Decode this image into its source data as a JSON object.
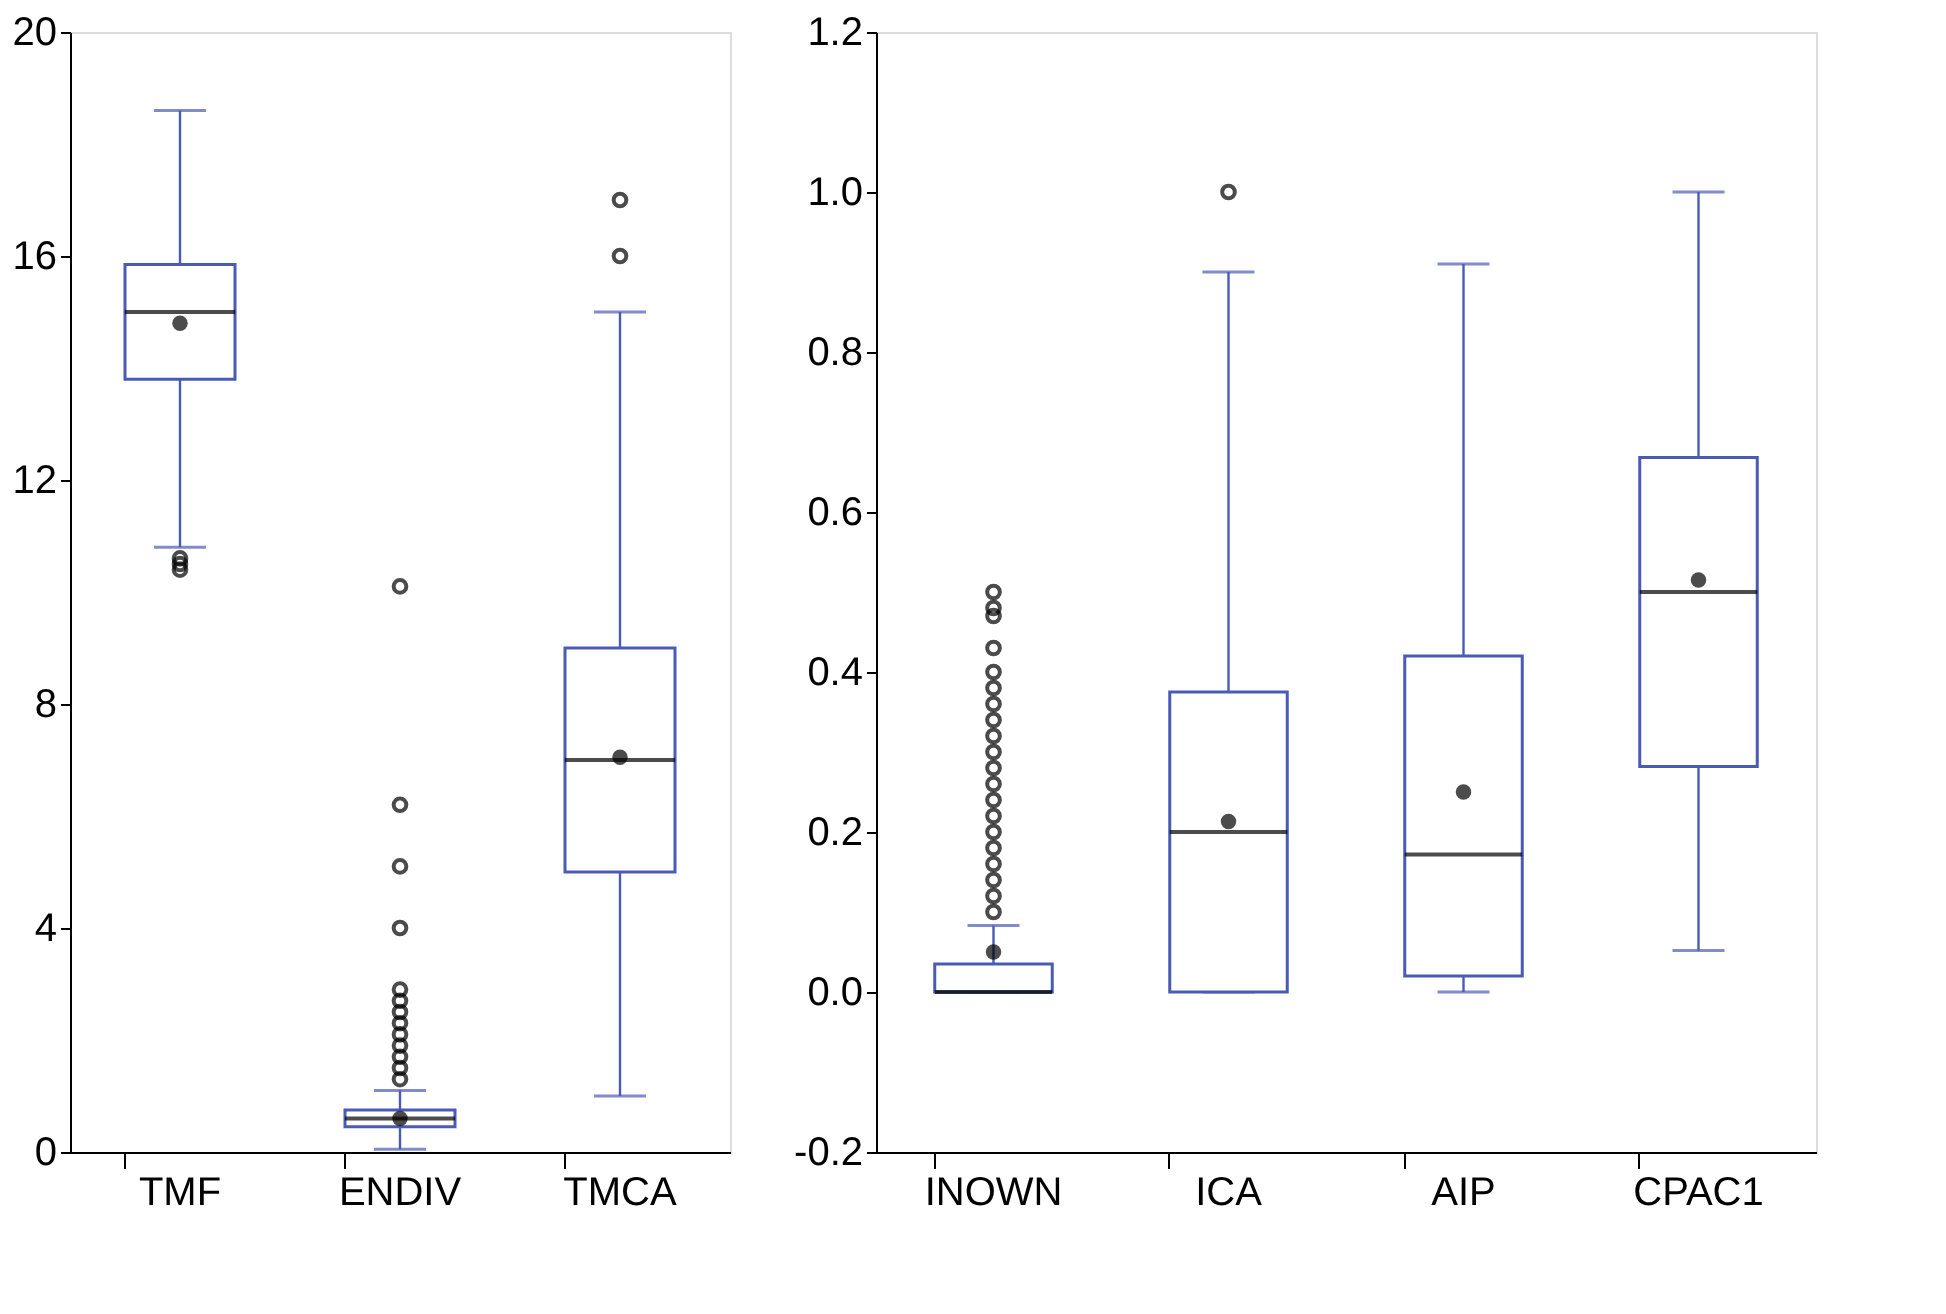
{
  "chart_data": [
    {
      "type": "box",
      "categories": [
        "TMF",
        "ENDIV",
        "TMCA"
      ],
      "color": "#4a5bb5",
      "ylim": [
        0,
        20
      ],
      "yticks": [
        0,
        4,
        8,
        12,
        16,
        20
      ],
      "grid": false,
      "boxes": [
        {
          "low": 10.8,
          "q1": 13.8,
          "median": 15.0,
          "q3": 15.85,
          "high": 18.6,
          "mean": 14.8,
          "outliers": [
            10.6,
            10.5,
            10.4
          ]
        },
        {
          "low": 0.05,
          "q1": 0.45,
          "median": 0.6,
          "q3": 0.75,
          "high": 1.1,
          "mean": 0.6,
          "outliers": [
            10.1,
            6.2,
            5.1,
            4.0,
            2.9,
            2.7,
            2.5,
            2.3,
            2.1,
            1.9,
            1.7,
            1.5,
            1.3
          ]
        },
        {
          "low": 1.0,
          "q1": 5.0,
          "median": 7.0,
          "q3": 9.0,
          "high": 15.0,
          "mean": 7.05,
          "outliers": [
            16,
            17
          ]
        }
      ]
    },
    {
      "type": "box",
      "categories": [
        "INOWN",
        "ICA",
        "AIP",
        "CPAC1"
      ],
      "color": "#4a5bb5",
      "ylim": [
        -0.2,
        1.2
      ],
      "yticks": [
        {
          "value": -0.2,
          "label": "-0.2"
        },
        {
          "value": 0,
          "label": "0.0"
        },
        {
          "value": 0.2,
          "label": "0.2"
        },
        {
          "value": 0.4,
          "label": "0.4"
        },
        {
          "value": 0.6,
          "label": "0.6"
        },
        {
          "value": 0.8,
          "label": "0.8"
        },
        {
          "value": 1.0,
          "label": "1.0"
        },
        {
          "value": 1.2,
          "label": "1.2"
        }
      ],
      "grid": false,
      "boxes": [
        {
          "low": 0,
          "q1": 0,
          "median": 0,
          "q3": 0.035,
          "high": 0.083,
          "mean": 0.05,
          "outliers": [
            0.1,
            0.12,
            0.14,
            0.16,
            0.18,
            0.2,
            0.22,
            0.24,
            0.26,
            0.28,
            0.3,
            0.32,
            0.34,
            0.36,
            0.38,
            0.4,
            0.43,
            0.47,
            0.48,
            0.5
          ]
        },
        {
          "low": 0,
          "q1": 0,
          "median": 0.2,
          "q3": 0.375,
          "high": 0.9,
          "mean": 0.213,
          "outliers": [
            1.0
          ]
        },
        {
          "low": 0,
          "q1": 0.02,
          "median": 0.172,
          "q3": 0.42,
          "high": 0.91,
          "mean": 0.25
        },
        {
          "low": 0.052,
          "q1": 0.282,
          "median": 0.5,
          "q3": 0.668,
          "high": 1.0,
          "mean": 0.515
        }
      ]
    }
  ]
}
